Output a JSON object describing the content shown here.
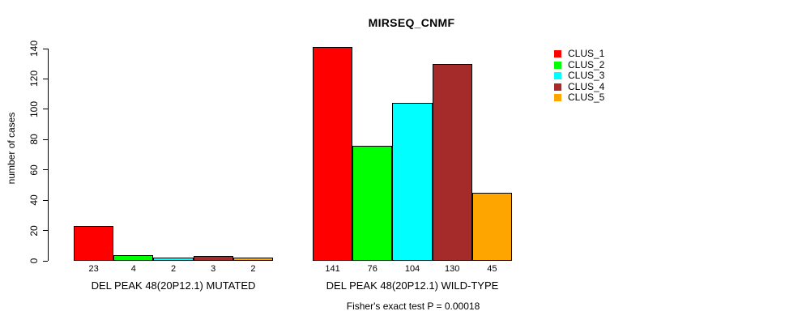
{
  "chart_data": {
    "type": "bar",
    "title": "MIRSEQ_CNMF",
    "ylabel": "number of cases",
    "xlabel": "",
    "yticks": [
      0,
      20,
      40,
      60,
      80,
      100,
      120,
      140
    ],
    "ylim": [
      0,
      148
    ],
    "grid": false,
    "legend_position": "right",
    "bar_value_labels": true,
    "groups": [
      "DEL PEAK 48(20P12.1) MUTATED",
      "DEL PEAK 48(20P12.1) WILD-TYPE"
    ],
    "series": [
      {
        "name": "CLUS_1",
        "color": "#ff0000",
        "values": [
          23,
          141
        ]
      },
      {
        "name": "CLUS_2",
        "color": "#00ff00",
        "values": [
          4,
          76
        ]
      },
      {
        "name": "CLUS_3",
        "color": "#00ffff",
        "values": [
          2,
          104
        ]
      },
      {
        "name": "CLUS_4",
        "color": "#a52a2a",
        "values": [
          3,
          130
        ]
      },
      {
        "name": "CLUS_5",
        "color": "#ffa500",
        "values": [
          2,
          45
        ]
      }
    ],
    "annotation": "Fisher's exact test P = 0.00018"
  }
}
